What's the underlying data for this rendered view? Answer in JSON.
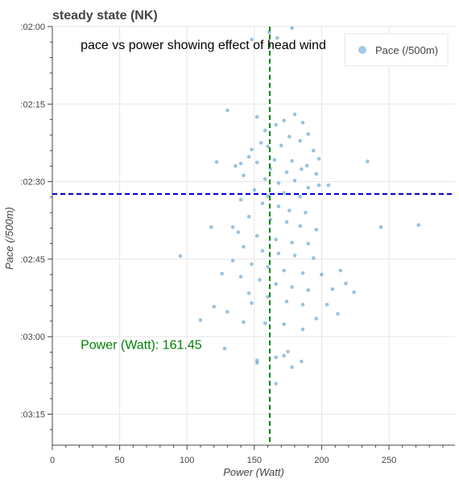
{
  "chart_data": {
    "type": "scatter",
    "title": "steady state (NK)",
    "xlabel": "Power (Watt)",
    "ylabel": "Pace (/500m)",
    "xlim": [
      0,
      299
    ],
    "ylim_seconds": [
      120,
      201
    ],
    "x_ticks": [
      {
        "value": 0,
        "label": "0"
      },
      {
        "value": 50,
        "label": "50"
      },
      {
        "value": 100,
        "label": "100"
      },
      {
        "value": 150,
        "label": "150"
      },
      {
        "value": 200,
        "label": "200"
      },
      {
        "value": 250,
        "label": "250"
      }
    ],
    "y_ticks": [
      {
        "value": 120,
        "label": ":02:00"
      },
      {
        "value": 135,
        "label": ":02:15"
      },
      {
        "value": 150,
        "label": ":02:30"
      },
      {
        "value": 165,
        "label": ":02:45"
      },
      {
        "value": 180,
        "label": ":03:00"
      },
      {
        "value": 195,
        "label": ":03:15"
      }
    ],
    "y_inverted": true,
    "grid": true,
    "legend": {
      "position": "top-right",
      "entries": [
        "Pace (/500m)"
      ]
    },
    "series_color": "#1f77b4",
    "reference_lines": [
      {
        "orientation": "vertical",
        "value": 161.45,
        "color": "#008000",
        "style": "dashed"
      },
      {
        "orientation": "horizontal",
        "value": 152.4,
        "color": "#0000cc",
        "style": "dashed"
      }
    ],
    "annotations": [
      {
        "text": "pace vs power showing effect of head wind",
        "x": 21,
        "y": 124.4,
        "color": "#000000"
      },
      {
        "text": "Power (Watt): 161.45",
        "x": 21,
        "y": 182.4,
        "color": "#008000"
      }
    ],
    "series": [
      {
        "name": "Pace (/500m)",
        "points": [
          [
            161,
            121.1
          ],
          [
            167,
            122.2
          ],
          [
            178,
            120.3
          ],
          [
            148,
            122.5
          ],
          [
            130,
            136.2
          ],
          [
            152,
            137.5
          ],
          [
            158,
            140.1
          ],
          [
            166,
            139.0
          ],
          [
            172,
            138.2
          ],
          [
            180,
            137.0
          ],
          [
            186,
            138.6
          ],
          [
            190,
            140.8
          ],
          [
            176,
            141.3
          ],
          [
            160,
            143.2
          ],
          [
            148,
            143.8
          ],
          [
            140,
            146.5
          ],
          [
            155,
            142.5
          ],
          [
            170,
            143.0
          ],
          [
            184,
            142.1
          ],
          [
            194,
            144.0
          ],
          [
            146,
            145.2
          ],
          [
            165,
            145.8
          ],
          [
            178,
            146.0
          ],
          [
            189,
            146.9
          ],
          [
            198,
            145.6
          ],
          [
            136,
            147.0
          ],
          [
            152,
            146.3
          ],
          [
            162,
            147.5
          ],
          [
            174,
            148.2
          ],
          [
            185,
            147.6
          ],
          [
            196,
            148.5
          ],
          [
            142,
            148.8
          ],
          [
            158,
            149.5
          ],
          [
            168,
            150.3
          ],
          [
            180,
            149.8
          ],
          [
            190,
            151.2
          ],
          [
            150,
            151.6
          ],
          [
            160,
            152.8
          ],
          [
            172,
            152.2
          ],
          [
            184,
            152.9
          ],
          [
            198,
            150.7
          ],
          [
            122,
            146.2
          ],
          [
            205,
            150.7
          ],
          [
            234,
            146.1
          ],
          [
            140,
            153.5
          ],
          [
            156,
            154.2
          ],
          [
            168,
            154.8
          ],
          [
            176,
            155.6
          ],
          [
            188,
            156.0
          ],
          [
            146,
            156.8
          ],
          [
            162,
            157.3
          ],
          [
            174,
            157.8
          ],
          [
            184,
            158.6
          ],
          [
            196,
            159.3
          ],
          [
            138,
            159.8
          ],
          [
            152,
            160.5
          ],
          [
            166,
            161.2
          ],
          [
            178,
            161.8
          ],
          [
            190,
            162.0
          ],
          [
            142,
            162.6
          ],
          [
            156,
            163.4
          ],
          [
            168,
            163.9
          ],
          [
            180,
            164.3
          ],
          [
            194,
            164.8
          ],
          [
            134,
            165.3
          ],
          [
            148,
            166.0
          ],
          [
            160,
            166.5
          ],
          [
            172,
            167.2
          ],
          [
            186,
            167.7
          ],
          [
            140,
            168.4
          ],
          [
            154,
            169.0
          ],
          [
            166,
            169.8
          ],
          [
            178,
            170.4
          ],
          [
            190,
            171.0
          ],
          [
            146,
            171.6
          ],
          [
            160,
            172.3
          ],
          [
            174,
            173.2
          ],
          [
            186,
            173.8
          ],
          [
            134,
            158.8
          ],
          [
            148,
            173.5
          ],
          [
            200,
            168.0
          ],
          [
            208,
            170.8
          ],
          [
            214,
            167.2
          ],
          [
            218,
            169.7
          ],
          [
            204,
            173.8
          ],
          [
            224,
            171.4
          ],
          [
            196,
            176.5
          ],
          [
            212,
            175.6
          ],
          [
            130,
            175.2
          ],
          [
            142,
            177.2
          ],
          [
            158,
            177.4
          ],
          [
            172,
            177.6
          ],
          [
            186,
            178.6
          ],
          [
            118,
            158.8
          ],
          [
            110,
            176.8
          ],
          [
            95,
            164.4
          ],
          [
            120,
            174.2
          ],
          [
            126,
            167.8
          ],
          [
            244,
            158.8
          ],
          [
            272,
            158.4
          ],
          [
            128,
            182.3
          ],
          [
            152,
            185.1
          ],
          [
            166,
            184.0
          ],
          [
            172,
            183.7
          ],
          [
            175,
            182.9
          ],
          [
            178,
            185.9
          ],
          [
            166,
            189.1
          ],
          [
            185,
            184.8
          ],
          [
            152,
            184.6
          ]
        ]
      }
    ]
  }
}
